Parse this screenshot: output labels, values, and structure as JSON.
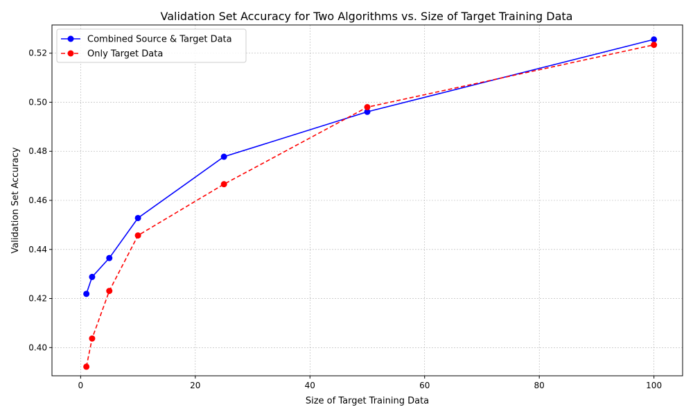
{
  "chart_data": {
    "type": "line",
    "title": "Validation Set Accuracy for Two Algorithms vs. Size of Target Training Data",
    "xlabel": "Size of Target Training Data",
    "ylabel": "Validation Set Accuracy",
    "xlim": [
      -5,
      105
    ],
    "ylim": [
      0.3885,
      0.5315
    ],
    "xticks": [
      0,
      20,
      40,
      60,
      80,
      100
    ],
    "xtick_labels": [
      "0",
      "20",
      "40",
      "60",
      "80",
      "100"
    ],
    "yticks": [
      0.4,
      0.42,
      0.44,
      0.46,
      0.48,
      0.5,
      0.52
    ],
    "ytick_labels": [
      "0.40",
      "0.42",
      "0.44",
      "0.46",
      "0.48",
      "0.50",
      "0.52"
    ],
    "grid": true,
    "legend_position": "top-left",
    "x": [
      1,
      2,
      5,
      10,
      25,
      50,
      100
    ],
    "series": [
      {
        "name": "Combined Source & Target Data",
        "color": "#0000ff",
        "line_style": "solid",
        "marker": "circle",
        "values": [
          0.4219,
          0.4288,
          0.4365,
          0.4528,
          0.4778,
          0.4961,
          0.5256
        ]
      },
      {
        "name": "Only Target Data",
        "color": "#ff0000",
        "line_style": "dashed",
        "marker": "circle",
        "values": [
          0.3922,
          0.4037,
          0.4231,
          0.4457,
          0.4666,
          0.498,
          0.5234
        ]
      }
    ]
  }
}
